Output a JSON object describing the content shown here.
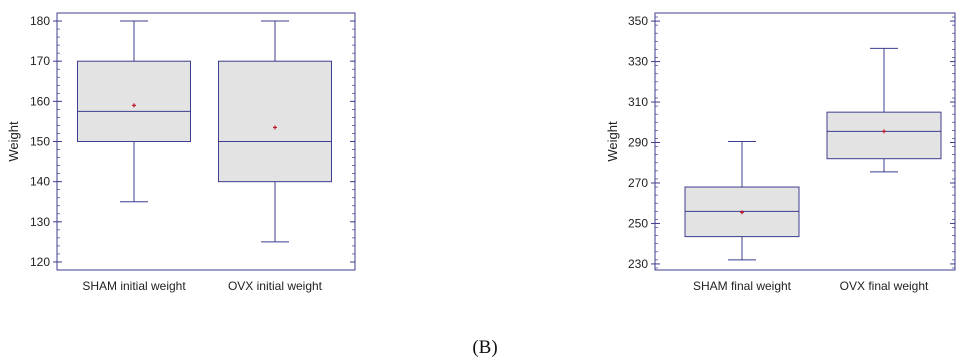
{
  "caption": "(B)",
  "chart_data": [
    {
      "type": "box",
      "xlabel": "",
      "ylabel": "Weight",
      "ylim": [
        118,
        182
      ],
      "yticks": [
        120,
        130,
        140,
        150,
        160,
        170,
        180
      ],
      "frame_color": "#3d3d8f",
      "box_fill": "#e3e3e3",
      "mean_marker_color": "#c0182d",
      "series": [
        {
          "name": "SHAM initial weight",
          "min": 135,
          "q1": 150,
          "median": 157.5,
          "q3": 170,
          "max": 180,
          "mean": 159
        },
        {
          "name": "OVX initial weight",
          "min": 125,
          "q1": 140,
          "median": 150,
          "q3": 170,
          "max": 180,
          "mean": 153.5
        }
      ]
    },
    {
      "type": "box",
      "xlabel": "",
      "ylabel": "Weight",
      "ylim": [
        227,
        354
      ],
      "yticks": [
        230,
        250,
        270,
        290,
        310,
        330,
        350
      ],
      "frame_color": "#3d3d8f",
      "box_fill": "#e3e3e3",
      "mean_marker_color": "#c0182d",
      "series": [
        {
          "name": "SHAM final weight",
          "min": 232,
          "q1": 243.5,
          "median": 256,
          "q3": 268,
          "max": 290.5,
          "mean": 255.5
        },
        {
          "name": "OVX final weight",
          "min": 275.5,
          "q1": 282,
          "median": 295.5,
          "q3": 305,
          "max": 336.5,
          "mean": 295.5
        }
      ]
    }
  ]
}
